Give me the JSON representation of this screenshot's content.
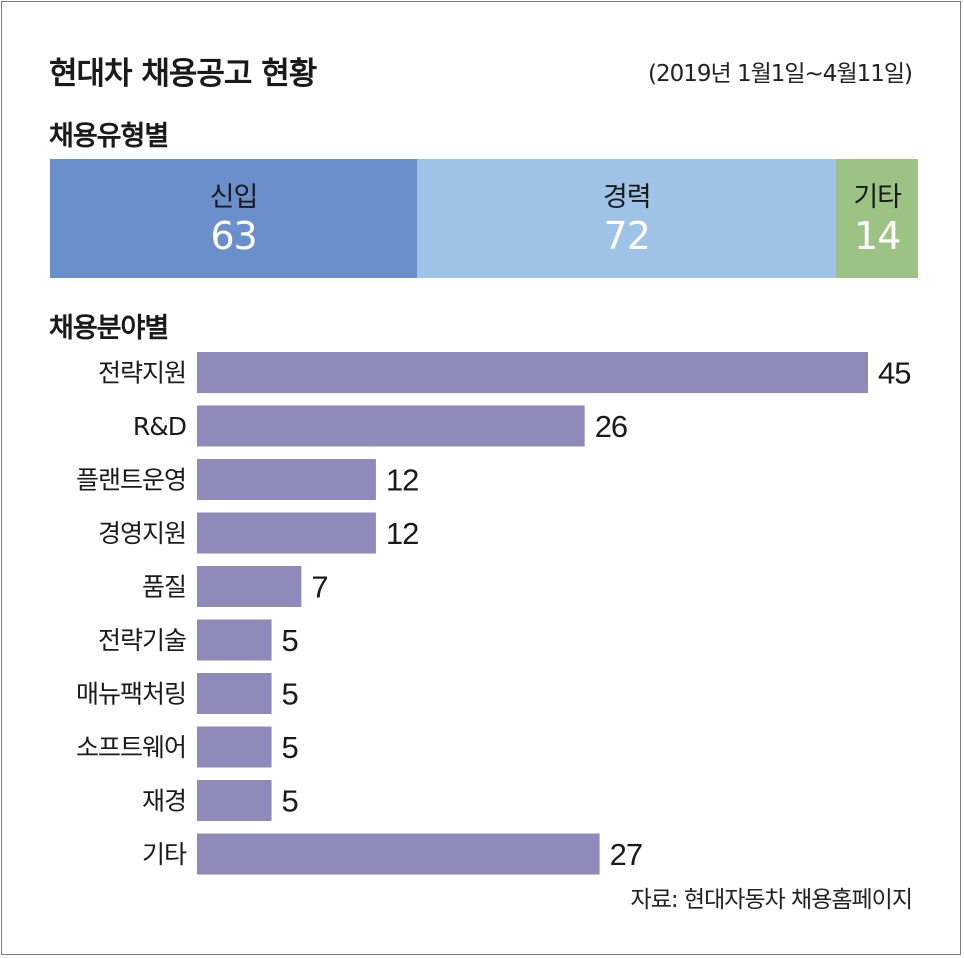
{
  "title": "현대차 채용공고 현황",
  "period": "(2019년 1월1일~4월11일)",
  "source": "자료: 현대자동차 채용홈페이지",
  "colors": {
    "seg_new": "#6b8fcb",
    "seg_career": "#9fc3e7",
    "seg_other": "#9cc383",
    "bar": "#8f8aba"
  },
  "chart_data": [
    {
      "type": "bar",
      "stacked": true,
      "orientation": "horizontal",
      "title": "채용유형별",
      "categories": [
        "신입",
        "경력",
        "기타"
      ],
      "values": [
        63,
        72,
        14
      ]
    },
    {
      "type": "bar",
      "orientation": "horizontal",
      "title": "채용분야별",
      "categories": [
        "전략지원",
        "R&D",
        "플랜트운영",
        "경영지원",
        "품질",
        "전략기술",
        "매뉴팩처링",
        "소프트웨어",
        "재경",
        "기타"
      ],
      "values": [
        45,
        26,
        12,
        12,
        7,
        5,
        5,
        5,
        5,
        27
      ],
      "xlim": [
        0,
        45
      ],
      "grid": false
    }
  ]
}
